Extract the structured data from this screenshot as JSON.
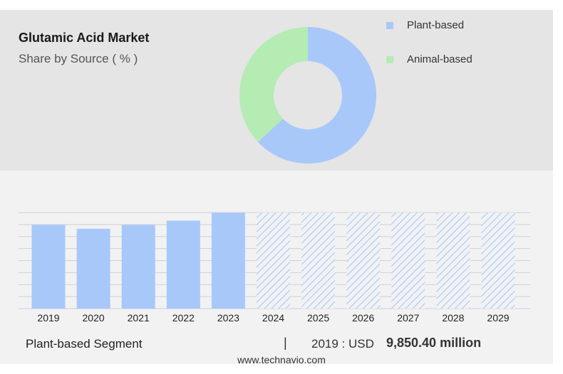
{
  "header": {
    "title": "Glutamic Acid Market",
    "subtitle": "Share by Source ( % )"
  },
  "legend": [
    {
      "label": "Plant-based",
      "color": "#a8c8fa"
    },
    {
      "label": "Animal-based",
      "color": "#b4ecb4"
    }
  ],
  "chart_data": [
    {
      "type": "pie",
      "donut": true,
      "title": "Share by Source ( % )",
      "labels": [
        "Plant-based",
        "Animal-based"
      ],
      "values": [
        63,
        37
      ],
      "colors": [
        "#a8c8fa",
        "#b4ecb4"
      ]
    },
    {
      "type": "bar",
      "categories": [
        "2019",
        "2020",
        "2021",
        "2022",
        "2023",
        "2024",
        "2025",
        "2026",
        "2027",
        "2028",
        "2029"
      ],
      "series": [
        {
          "name": "Plant-based Segment",
          "values": [
            9850.4,
            9400,
            9850,
            10350,
            11300,
            null,
            null,
            null,
            null,
            null,
            null
          ]
        }
      ],
      "forecast_categories": [
        "2024",
        "2025",
        "2026",
        "2027",
        "2028",
        "2029"
      ],
      "forecast_values": [
        11300,
        11300,
        11300,
        11300,
        11300,
        11300
      ],
      "ylim": [
        0,
        11300
      ],
      "grid": true,
      "bar_color": "#a8c8fa"
    }
  ],
  "footer": {
    "segment": "Plant-based Segment",
    "separator": "|",
    "year_label": "2019 : USD",
    "value": "9,850.40 million",
    "website": "www.technavio.com"
  }
}
